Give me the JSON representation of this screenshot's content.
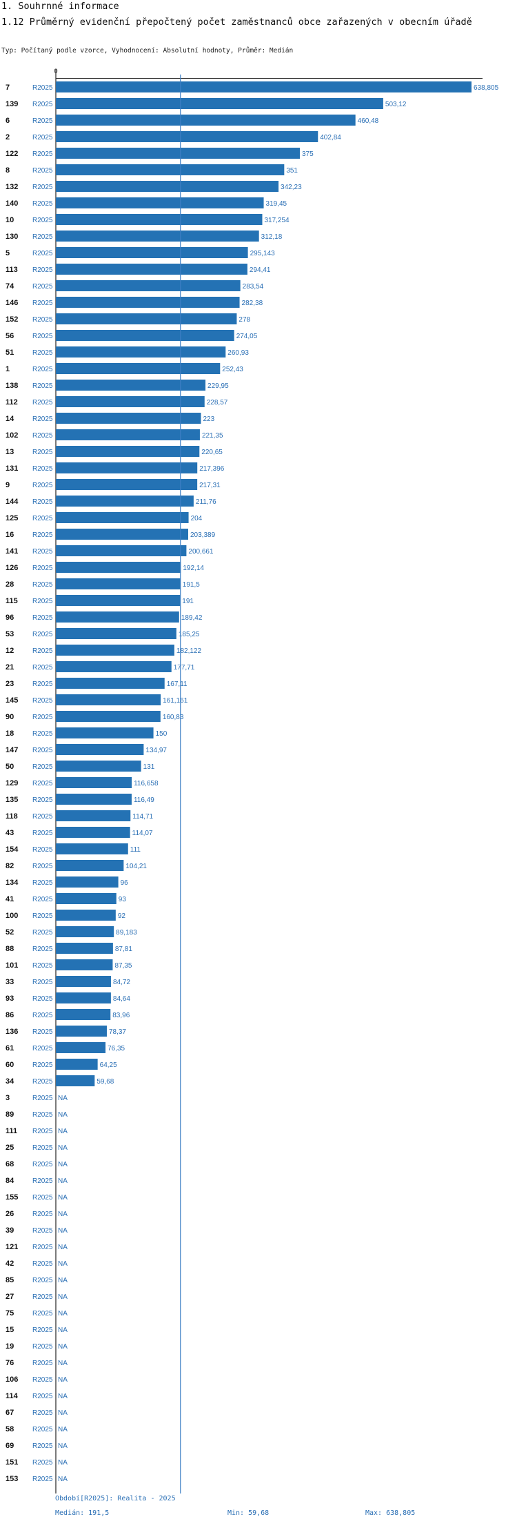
{
  "header": {
    "section": "1. Souhrnné informace",
    "title": "1.12 Průměrný evidenční přepočtený počet zaměstnanců obce zařazených v obecním úřadě",
    "subtitle": "Typ: Počítaný podle vzorce, Vyhodnocení: Absolutní hodnoty, Průměr: Medián"
  },
  "chart_data": {
    "type": "bar",
    "orientation": "horizontal",
    "title": "1.12 Průměrný evidenční přepočtený počet zaměstnanců obce zařazených v obecním úřadě",
    "axis_zero_label": "0",
    "xlim": [
      0,
      638.805
    ],
    "series_label": "R2025",
    "median": 191.5,
    "bar_color": "#2472b4",
    "label_color": "#2a6fb5",
    "rows": [
      {
        "id": "7",
        "value": 638.805,
        "label": "638,805"
      },
      {
        "id": "139",
        "value": 503.12,
        "label": "503,12"
      },
      {
        "id": "6",
        "value": 460.48,
        "label": "460,48"
      },
      {
        "id": "2",
        "value": 402.84,
        "label": "402,84"
      },
      {
        "id": "122",
        "value": 375,
        "label": "375"
      },
      {
        "id": "8",
        "value": 351,
        "label": "351"
      },
      {
        "id": "132",
        "value": 342.23,
        "label": "342,23"
      },
      {
        "id": "140",
        "value": 319.45,
        "label": "319,45"
      },
      {
        "id": "10",
        "value": 317.254,
        "label": "317,254"
      },
      {
        "id": "130",
        "value": 312.18,
        "label": "312,18"
      },
      {
        "id": "5",
        "value": 295.143,
        "label": "295,143"
      },
      {
        "id": "113",
        "value": 294.41,
        "label": "294,41"
      },
      {
        "id": "74",
        "value": 283.54,
        "label": "283,54"
      },
      {
        "id": "146",
        "value": 282.38,
        "label": "282,38"
      },
      {
        "id": "152",
        "value": 278,
        "label": "278"
      },
      {
        "id": "56",
        "value": 274.05,
        "label": "274,05"
      },
      {
        "id": "51",
        "value": 260.93,
        "label": "260,93"
      },
      {
        "id": "1",
        "value": 252.43,
        "label": "252,43"
      },
      {
        "id": "138",
        "value": 229.95,
        "label": "229,95"
      },
      {
        "id": "112",
        "value": 228.57,
        "label": "228,57"
      },
      {
        "id": "14",
        "value": 223,
        "label": "223"
      },
      {
        "id": "102",
        "value": 221.35,
        "label": "221,35"
      },
      {
        "id": "13",
        "value": 220.65,
        "label": "220,65"
      },
      {
        "id": "131",
        "value": 217.396,
        "label": "217,396"
      },
      {
        "id": "9",
        "value": 217.31,
        "label": "217,31"
      },
      {
        "id": "144",
        "value": 211.76,
        "label": "211,76"
      },
      {
        "id": "125",
        "value": 204,
        "label": "204"
      },
      {
        "id": "16",
        "value": 203.389,
        "label": "203,389"
      },
      {
        "id": "141",
        "value": 200.661,
        "label": "200,661"
      },
      {
        "id": "126",
        "value": 192.14,
        "label": "192,14"
      },
      {
        "id": "28",
        "value": 191.5,
        "label": "191,5"
      },
      {
        "id": "115",
        "value": 191,
        "label": "191"
      },
      {
        "id": "96",
        "value": 189.42,
        "label": "189,42"
      },
      {
        "id": "53",
        "value": 185.25,
        "label": "185,25"
      },
      {
        "id": "12",
        "value": 182.122,
        "label": "182,122"
      },
      {
        "id": "21",
        "value": 177.71,
        "label": "177,71"
      },
      {
        "id": "23",
        "value": 167.11,
        "label": "167,11"
      },
      {
        "id": "145",
        "value": 161.161,
        "label": "161,161"
      },
      {
        "id": "90",
        "value": 160.83,
        "label": "160,83"
      },
      {
        "id": "18",
        "value": 150,
        "label": "150"
      },
      {
        "id": "147",
        "value": 134.97,
        "label": "134,97"
      },
      {
        "id": "50",
        "value": 131,
        "label": "131"
      },
      {
        "id": "129",
        "value": 116.658,
        "label": "116,658"
      },
      {
        "id": "135",
        "value": 116.49,
        "label": "116,49"
      },
      {
        "id": "118",
        "value": 114.71,
        "label": "114,71"
      },
      {
        "id": "43",
        "value": 114.07,
        "label": "114,07"
      },
      {
        "id": "154",
        "value": 111,
        "label": "111"
      },
      {
        "id": "82",
        "value": 104.21,
        "label": "104,21"
      },
      {
        "id": "134",
        "value": 96,
        "label": "96"
      },
      {
        "id": "41",
        "value": 93,
        "label": "93"
      },
      {
        "id": "100",
        "value": 92,
        "label": "92"
      },
      {
        "id": "52",
        "value": 89.183,
        "label": "89,183"
      },
      {
        "id": "88",
        "value": 87.81,
        "label": "87,81"
      },
      {
        "id": "101",
        "value": 87.35,
        "label": "87,35"
      },
      {
        "id": "33",
        "value": 84.72,
        "label": "84,72"
      },
      {
        "id": "93",
        "value": 84.64,
        "label": "84,64"
      },
      {
        "id": "86",
        "value": 83.96,
        "label": "83,96"
      },
      {
        "id": "136",
        "value": 78.37,
        "label": "78,37"
      },
      {
        "id": "61",
        "value": 76.35,
        "label": "76,35"
      },
      {
        "id": "60",
        "value": 64.25,
        "label": "64,25"
      },
      {
        "id": "34",
        "value": 59.68,
        "label": "59,68"
      },
      {
        "id": "3",
        "value": null,
        "label": "NA"
      },
      {
        "id": "89",
        "value": null,
        "label": "NA"
      },
      {
        "id": "111",
        "value": null,
        "label": "NA"
      },
      {
        "id": "25",
        "value": null,
        "label": "NA"
      },
      {
        "id": "68",
        "value": null,
        "label": "NA"
      },
      {
        "id": "84",
        "value": null,
        "label": "NA"
      },
      {
        "id": "155",
        "value": null,
        "label": "NA"
      },
      {
        "id": "26",
        "value": null,
        "label": "NA"
      },
      {
        "id": "39",
        "value": null,
        "label": "NA"
      },
      {
        "id": "121",
        "value": null,
        "label": "NA"
      },
      {
        "id": "42",
        "value": null,
        "label": "NA"
      },
      {
        "id": "85",
        "value": null,
        "label": "NA"
      },
      {
        "id": "27",
        "value": null,
        "label": "NA"
      },
      {
        "id": "75",
        "value": null,
        "label": "NA"
      },
      {
        "id": "15",
        "value": null,
        "label": "NA"
      },
      {
        "id": "19",
        "value": null,
        "label": "NA"
      },
      {
        "id": "76",
        "value": null,
        "label": "NA"
      },
      {
        "id": "106",
        "value": null,
        "label": "NA"
      },
      {
        "id": "114",
        "value": null,
        "label": "NA"
      },
      {
        "id": "67",
        "value": null,
        "label": "NA"
      },
      {
        "id": "58",
        "value": null,
        "label": "NA"
      },
      {
        "id": "69",
        "value": null,
        "label": "NA"
      },
      {
        "id": "151",
        "value": null,
        "label": "NA"
      },
      {
        "id": "153",
        "value": null,
        "label": "NA"
      }
    ]
  },
  "footer": {
    "period": "Období[R2025]: Realita - 2025",
    "median": "Medián: 191,5",
    "min": "Min: 59,68",
    "max": "Max: 638,805"
  }
}
